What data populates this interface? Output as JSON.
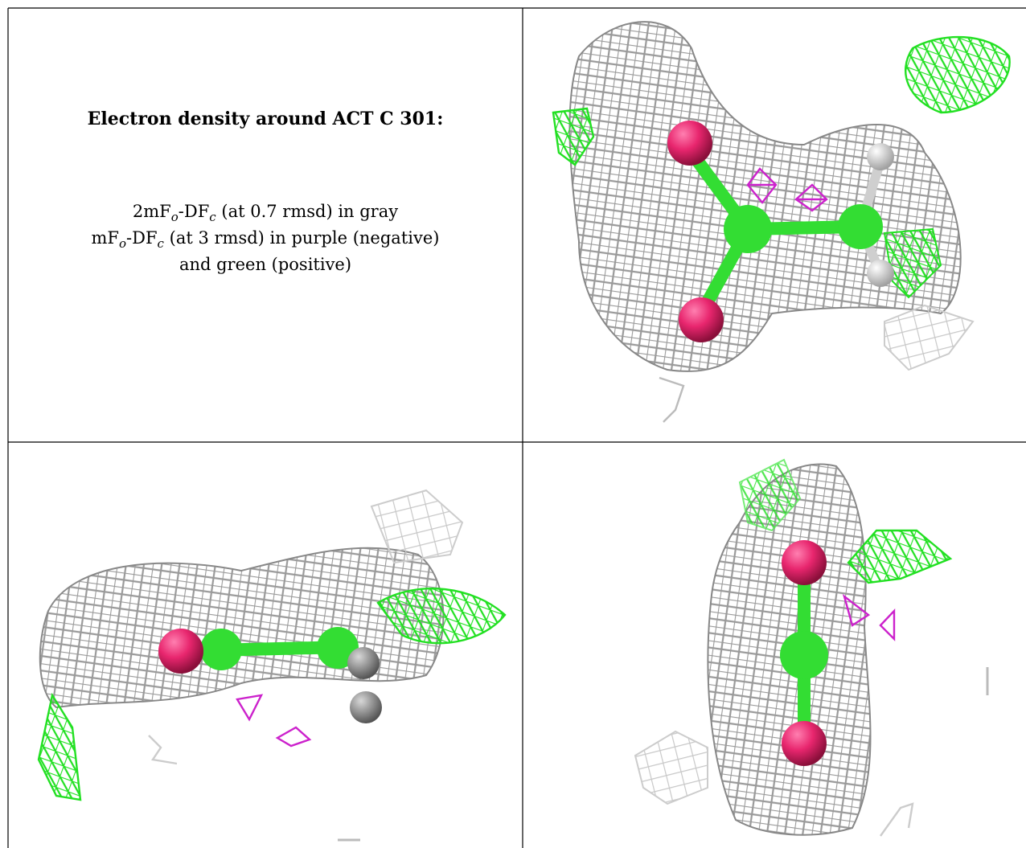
{
  "figure": {
    "title": "Electron density around ACT C 301:",
    "caption_lines": [
      [
        "2mF",
        "o",
        "-DF",
        "c",
        " (at 0.7 rmsd) in gray"
      ],
      [
        "mF",
        "o",
        "-DF",
        "c",
        " (at 3 rmsd) in purple (negative)"
      ],
      [
        "and green (positive)"
      ]
    ]
  }
}
